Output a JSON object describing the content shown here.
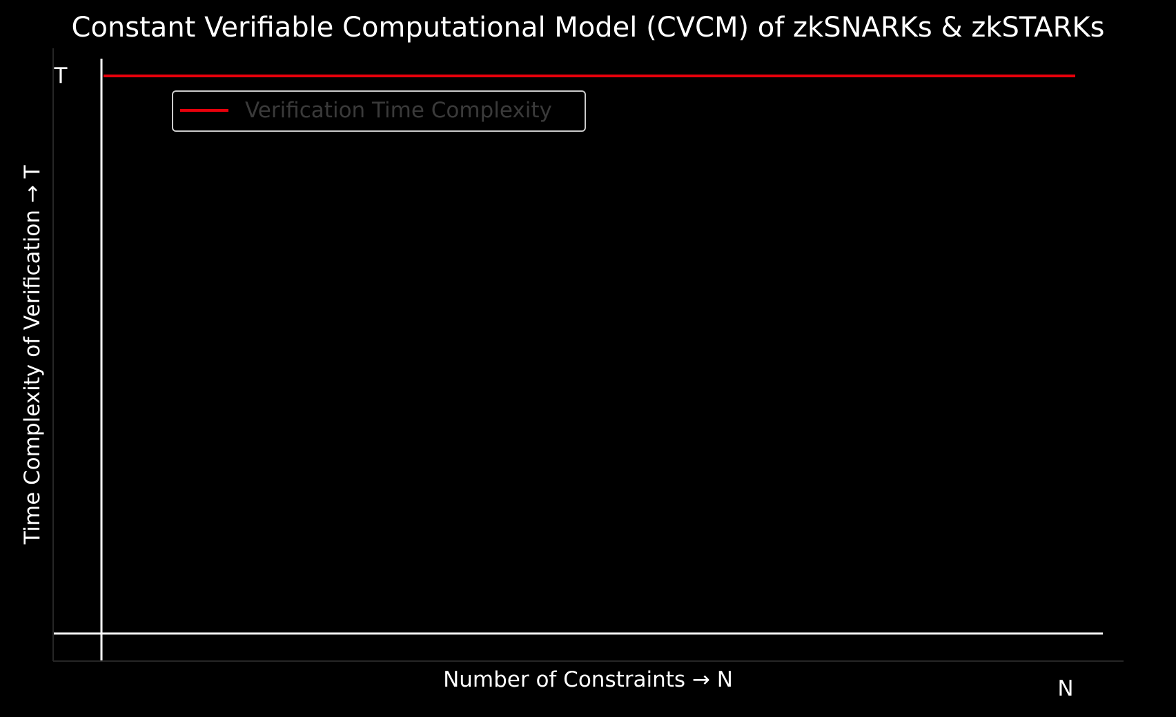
{
  "chart_data": {
    "type": "line",
    "title": "Constant Verifiable Computational Model (CVCM) of zkSNARKs & zkSTARKs",
    "xlabel": "Number of Constraints → N",
    "ylabel": "Time Complexity of Verification → T",
    "x_end_label": "N",
    "y_end_label": "T",
    "xlim": [
      0,
      1
    ],
    "ylim": [
      0,
      1
    ],
    "grid": false,
    "legend": {
      "position": "top-left"
    },
    "series": [
      {
        "name": "Verification Time Complexity",
        "color": "#e8000b",
        "x": [
          0,
          1
        ],
        "y": [
          1,
          1
        ]
      }
    ]
  },
  "colors": {
    "background": "#000000",
    "foreground": "#ffffff",
    "spine": "#262626",
    "legend_text": "#3a3a3a",
    "legend_border": "#cccccc"
  }
}
